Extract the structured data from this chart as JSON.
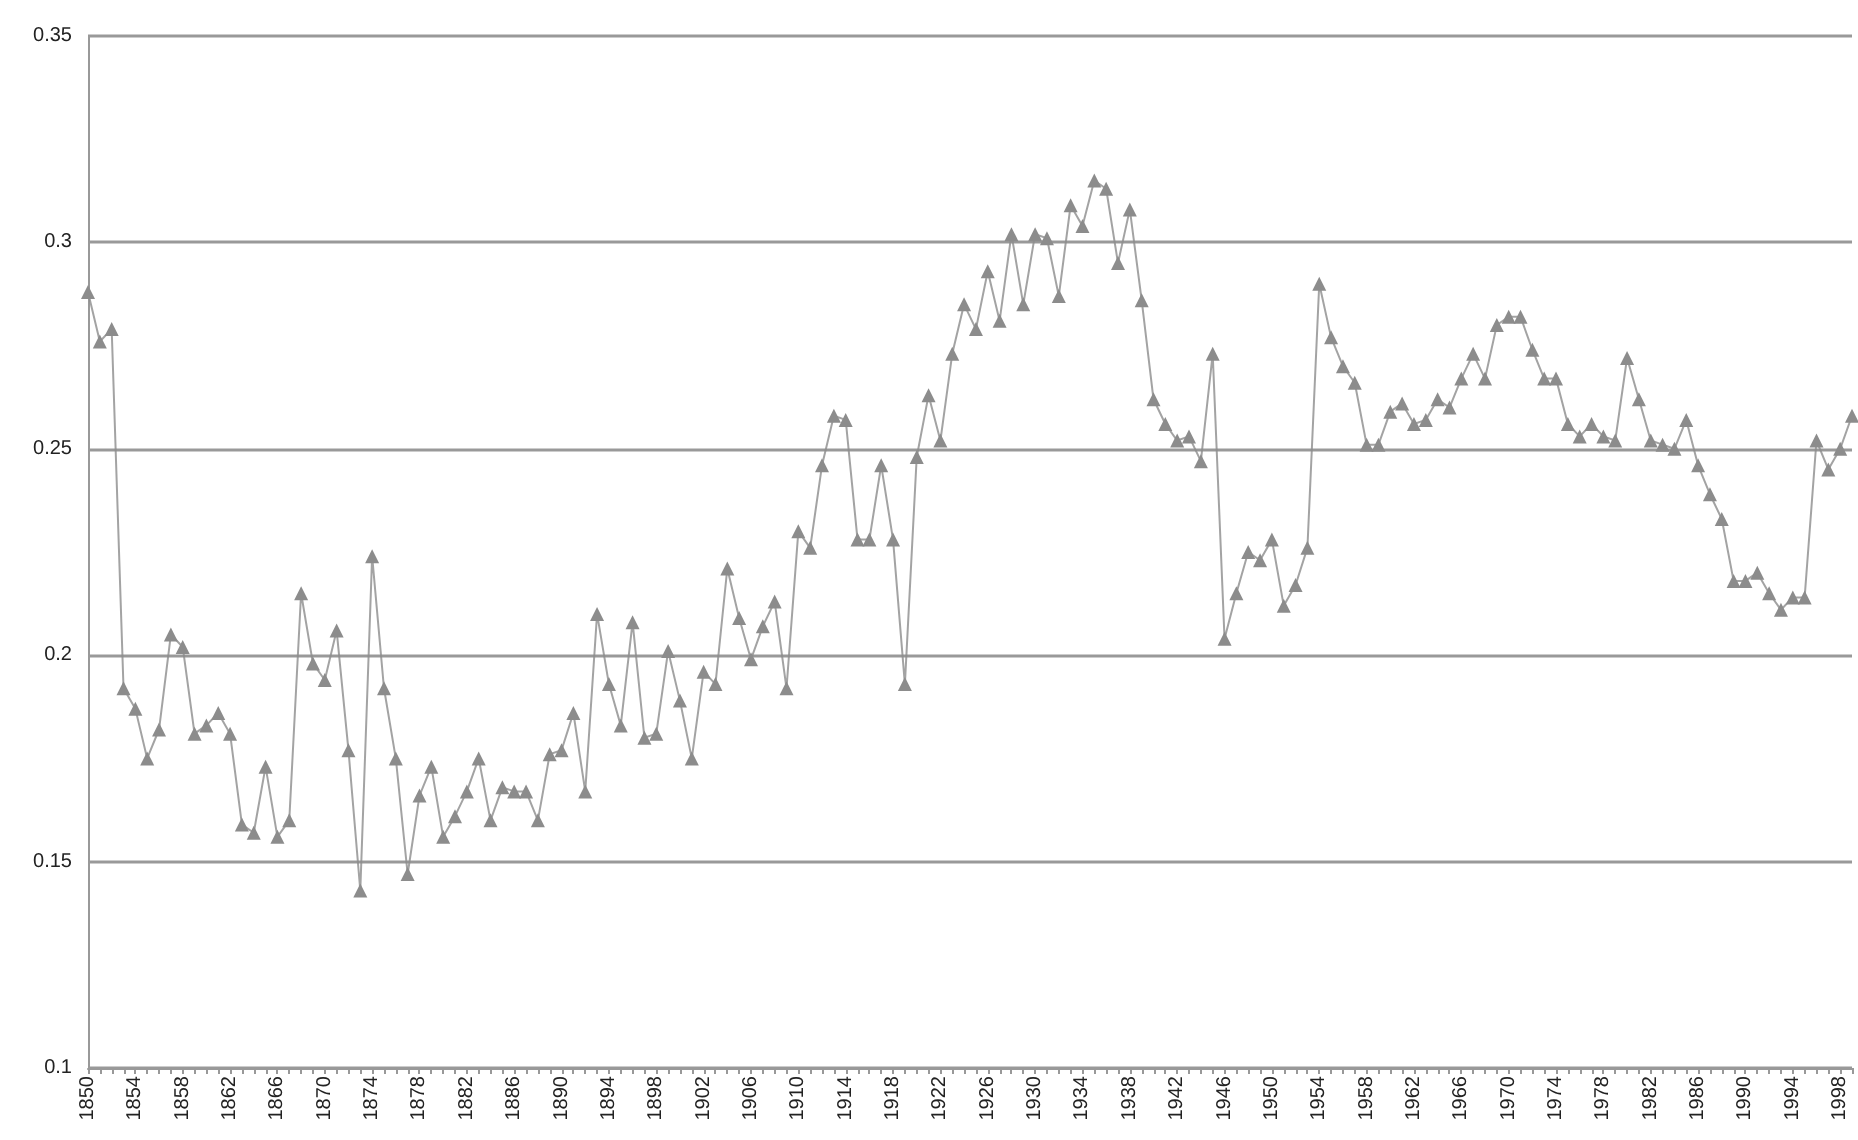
{
  "chart_data": {
    "type": "line",
    "marker": "triangle",
    "grid": "y",
    "ylim": [
      0.1,
      0.35
    ],
    "yticks": [
      0.1,
      0.15,
      0.2,
      0.25,
      0.3,
      0.35
    ],
    "categories": [
      "1850",
      null,
      null,
      null,
      "1854",
      null,
      null,
      null,
      "1858",
      null,
      null,
      null,
      "1862",
      null,
      null,
      null,
      "1866",
      null,
      null,
      null,
      "1870",
      null,
      null,
      null,
      "1874",
      null,
      null,
      null,
      "1878",
      null,
      null,
      null,
      "1882",
      null,
      null,
      null,
      "1886",
      null,
      null,
      null,
      "1890",
      null,
      null,
      null,
      "1894",
      null,
      null,
      null,
      "1898",
      null,
      null,
      null,
      "1902",
      null,
      null,
      null,
      "1906",
      null,
      null,
      null,
      "1910",
      null,
      null,
      null,
      "1914",
      null,
      null,
      null,
      "1918",
      null,
      null,
      null,
      "1922",
      null,
      null,
      null,
      "1926",
      null,
      null,
      null,
      "1930",
      null,
      null,
      null,
      "1934",
      null,
      null,
      null,
      "1938",
      null,
      null,
      null,
      "1942",
      null,
      null,
      null,
      "1946",
      null,
      null,
      null,
      "1950",
      null,
      null,
      null,
      "1954",
      null,
      null,
      null,
      "1958",
      null,
      null,
      null,
      "1962",
      null,
      null,
      null,
      "1966",
      null,
      null,
      null,
      "1970",
      null,
      null,
      null,
      "1974",
      null,
      null,
      null,
      "1978",
      null,
      null,
      null,
      "1982",
      null,
      null,
      null,
      "1986",
      null,
      null,
      null,
      "1990",
      null,
      null,
      null,
      "1994",
      null,
      null,
      null,
      "1998",
      null
    ],
    "series": [
      {
        "color": "#8c8c8c",
        "values": [
          0.288,
          0.276,
          0.279,
          0.192,
          0.187,
          0.175,
          0.182,
          0.205,
          0.202,
          0.181,
          0.183,
          0.186,
          0.181,
          0.159,
          0.157,
          0.173,
          0.156,
          0.16,
          0.215,
          0.198,
          0.194,
          0.206,
          0.177,
          0.143,
          0.224,
          0.192,
          0.175,
          0.147,
          0.166,
          0.173,
          0.156,
          0.161,
          0.167,
          0.175,
          0.16,
          0.168,
          0.167,
          0.167,
          0.16,
          0.176,
          0.177,
          0.186,
          0.167,
          0.21,
          0.193,
          0.183,
          0.208,
          0.18,
          0.181,
          0.201,
          0.189,
          0.175,
          0.196,
          0.193,
          0.221,
          0.209,
          0.199,
          0.207,
          0.213,
          0.192,
          0.23,
          0.226,
          0.246,
          0.258,
          0.257,
          0.228,
          0.228,
          0.246,
          0.228,
          0.193,
          0.248,
          0.263,
          0.252,
          0.273,
          0.285,
          0.279,
          0.293,
          0.281,
          0.302,
          0.285,
          0.302,
          0.301,
          0.287,
          0.309,
          0.304,
          0.315,
          0.313,
          0.295,
          0.308,
          0.286,
          0.262,
          0.256,
          0.252,
          0.253,
          0.247,
          0.273,
          0.204,
          0.215,
          0.225,
          0.223,
          0.228,
          0.212,
          0.217,
          0.226,
          0.29,
          0.277,
          0.27,
          0.266,
          0.251,
          0.251,
          0.259,
          0.261,
          0.256,
          0.257,
          0.262,
          0.26,
          0.267,
          0.273,
          0.267,
          0.28,
          0.282,
          0.282,
          0.274,
          0.267,
          0.267,
          0.256,
          0.253,
          0.256,
          0.253,
          0.252,
          0.272,
          0.262,
          0.252,
          0.251,
          0.25,
          0.257,
          0.246,
          0.239,
          0.233,
          0.218,
          0.218,
          0.22,
          0.215,
          0.211,
          0.214,
          0.214,
          0.252,
          0.245,
          0.25,
          0.258
        ]
      }
    ]
  }
}
